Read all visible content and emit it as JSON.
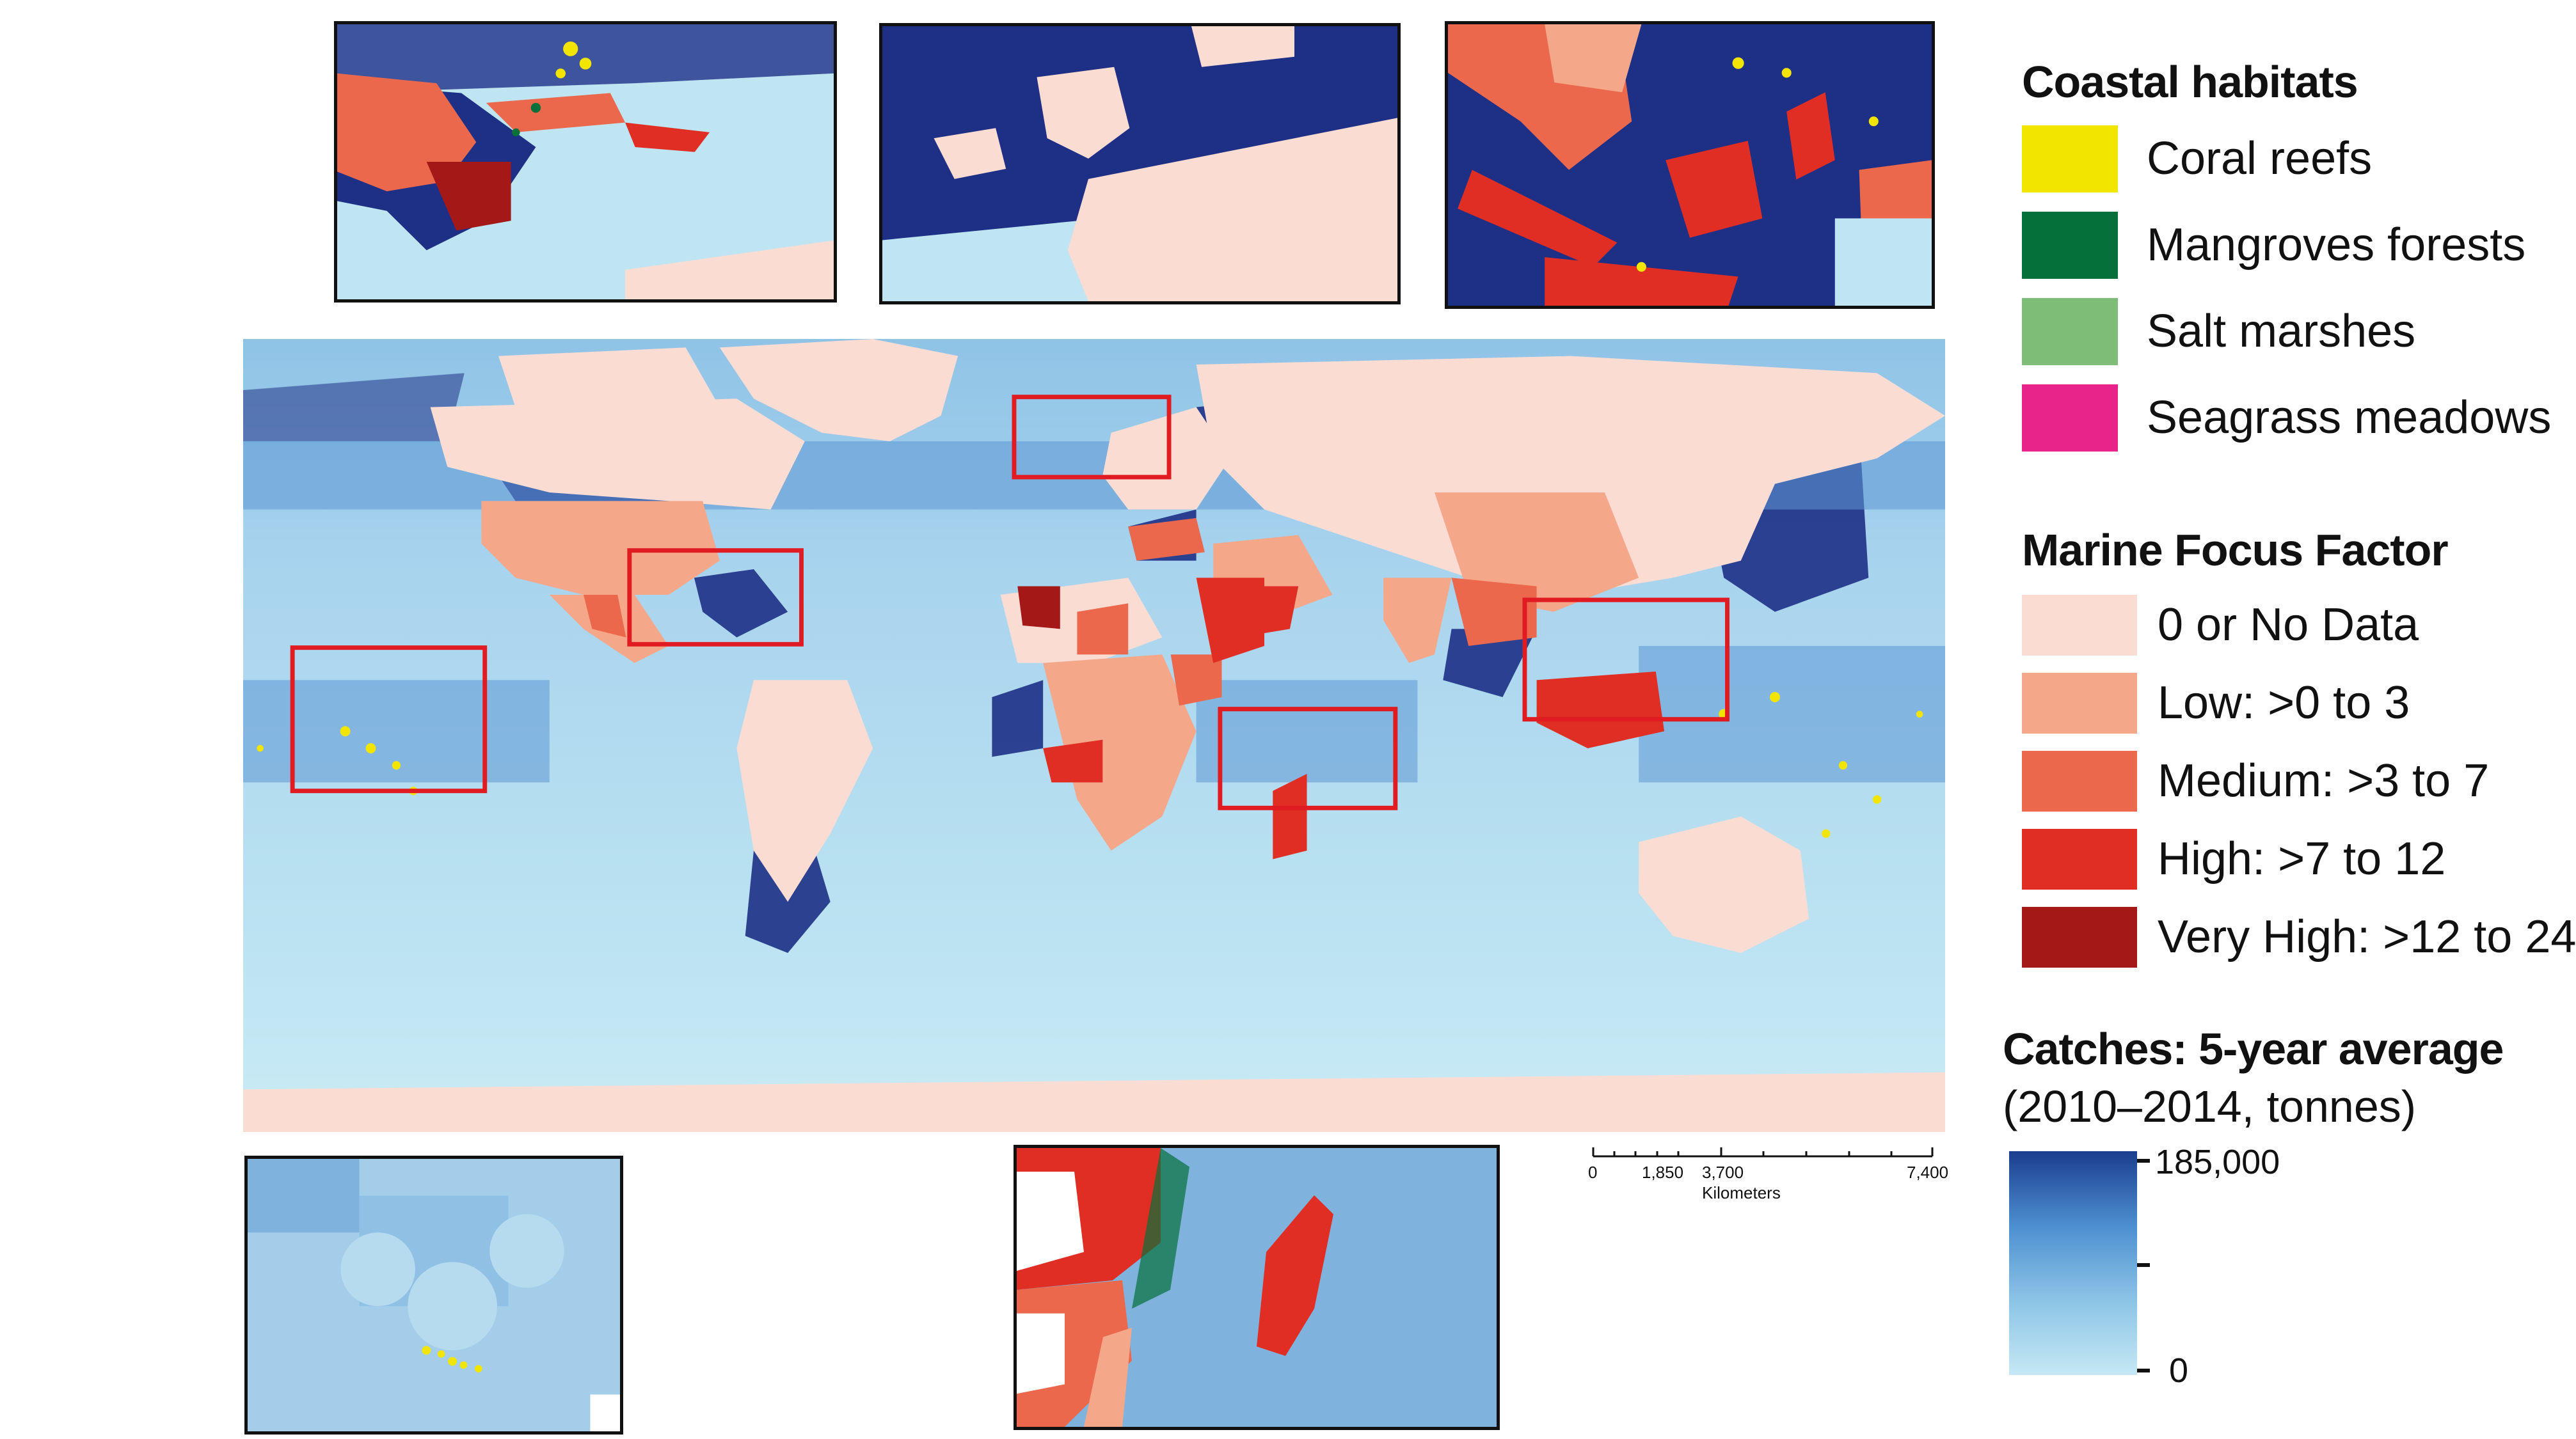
{
  "legend": {
    "habitats_title": "Coastal habitats",
    "habitats": [
      {
        "label": "Coral reefs",
        "color": "#f2e600"
      },
      {
        "label": "Mangroves forests",
        "color": "#05703a"
      },
      {
        "label": "Salt marshes",
        "color": "#7dbd78"
      },
      {
        "label": "Seagrass meadows",
        "color": "#e8248a"
      }
    ],
    "mff_title": "Marine Focus Factor",
    "mff_classes": [
      {
        "label": "0 or No Data",
        "color": "#fbdcd3"
      },
      {
        "label": "Low: >0 to 3",
        "color": "#f5a78a"
      },
      {
        "label": "Medium: >3 to 7",
        "color": "#ec684d"
      },
      {
        "label": "High: >7 to 12",
        "color": "#e02e24"
      },
      {
        "label": "Very High: >12 to 24",
        "color": "#a51818"
      }
    ],
    "catches_title": "Catches: 5-year average",
    "catches_sub": "(2010–2014, tonnes)",
    "catches_max": "185,000",
    "catches_min": "0",
    "catches_ramp": [
      "#c5e8f4",
      "#8cc4e6",
      "#4d8fd0",
      "#1b3d8f"
    ]
  },
  "scalebar": {
    "ticks": [
      "0",
      "1,850",
      "3,700",
      "7,400"
    ],
    "unit": "Kilometers"
  },
  "colors": {
    "ocean": "#bfe4f2",
    "deep_catch": "#1e2f86",
    "mid_catch": "#5d98d4",
    "highlight_box": "#e01b22"
  }
}
